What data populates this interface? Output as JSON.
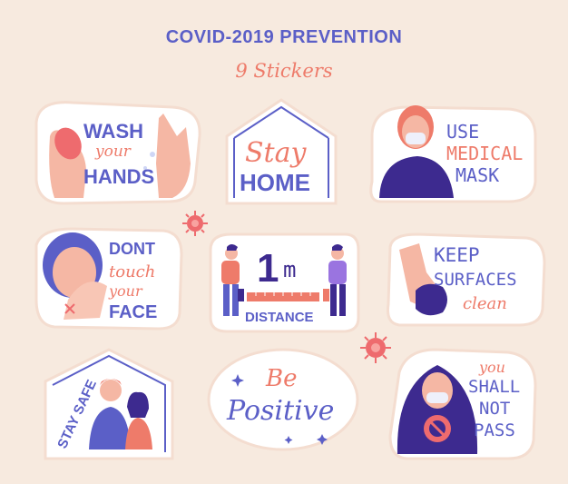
{
  "header": {
    "title": "COVID-2019 PREVENTION",
    "subtitle": "9 Stickers"
  },
  "colors": {
    "background": "#f7eadf",
    "blue": "#5b5fc7",
    "coral": "#ee7b6a",
    "skin": "#f5b7a4",
    "purple": "#3d2a8f"
  },
  "stickers": {
    "wash_hands": {
      "line1": "WASH",
      "line2": "your",
      "line3": "HANDS"
    },
    "stay_home": {
      "line1": "Stay",
      "line2": "HOME"
    },
    "medical_mask": {
      "line1": "USE",
      "line2": "MEDICAL",
      "line3": "MASK"
    },
    "dont_touch": {
      "line1": "DONT",
      "line2": "touch",
      "line3": "your",
      "line4": "FACE"
    },
    "distance": {
      "big": "1",
      "unit": "m",
      "label": "DISTANCE"
    },
    "keep_surfaces": {
      "line1": "KEEP",
      "line2": "SURFACES",
      "line3": "clean"
    },
    "stay_safe": {
      "line1": "STAY SAFE"
    },
    "be_positive": {
      "line1": "Be",
      "line2": "Positive"
    },
    "shall_not_pass": {
      "line1": "you",
      "line2": "SHALL",
      "line3": "NOT",
      "line4": "PASS"
    }
  }
}
